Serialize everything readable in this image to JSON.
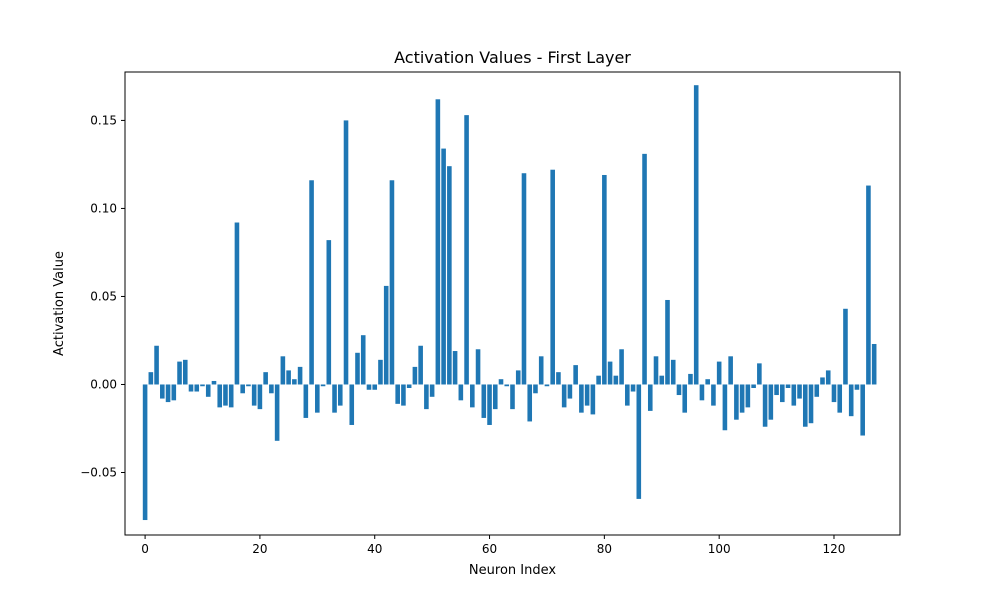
{
  "chart_data": {
    "type": "bar",
    "title": "Activation Values - First Layer",
    "xlabel": "Neuron Index",
    "ylabel": "Activation Value",
    "xlim": [
      -3.5,
      131.5
    ],
    "ylim": [
      -0.0855,
      0.1775
    ],
    "xticks": [
      0,
      20,
      40,
      60,
      80,
      100,
      120
    ],
    "yticks": [
      -0.05,
      0.0,
      0.05,
      0.1,
      0.15
    ],
    "ytick_labels": [
      "−0.05",
      "0.00",
      "0.05",
      "0.10",
      "0.15"
    ],
    "grid": false,
    "bar_color": "#1f77b4",
    "x": [
      0,
      1,
      2,
      3,
      4,
      5,
      6,
      7,
      8,
      9,
      10,
      11,
      12,
      13,
      14,
      15,
      16,
      17,
      18,
      19,
      20,
      21,
      22,
      23,
      24,
      25,
      26,
      27,
      28,
      29,
      30,
      31,
      32,
      33,
      34,
      35,
      36,
      37,
      38,
      39,
      40,
      41,
      42,
      43,
      44,
      45,
      46,
      47,
      48,
      49,
      50,
      51,
      52,
      53,
      54,
      55,
      56,
      57,
      58,
      59,
      60,
      61,
      62,
      63,
      64,
      65,
      66,
      67,
      68,
      69,
      70,
      71,
      72,
      73,
      74,
      75,
      76,
      77,
      78,
      79,
      80,
      81,
      82,
      83,
      84,
      85,
      86,
      87,
      88,
      89,
      90,
      91,
      92,
      93,
      94,
      95,
      96,
      97,
      98,
      99,
      100,
      101,
      102,
      103,
      104,
      105,
      106,
      107,
      108,
      109,
      110,
      111,
      112,
      113,
      114,
      115,
      116,
      117,
      118,
      119,
      120,
      121,
      122,
      123,
      124,
      125,
      126,
      127
    ],
    "values": [
      -0.077,
      0.007,
      0.022,
      -0.008,
      -0.01,
      -0.009,
      0.013,
      0.014,
      -0.004,
      -0.004,
      -0.001,
      -0.007,
      0.002,
      -0.013,
      -0.012,
      -0.013,
      0.092,
      -0.005,
      -0.001,
      -0.012,
      -0.014,
      0.007,
      -0.005,
      -0.032,
      0.016,
      0.008,
      0.003,
      0.01,
      -0.019,
      0.116,
      -0.016,
      -0.001,
      0.082,
      -0.016,
      -0.012,
      0.15,
      -0.023,
      0.018,
      0.028,
      -0.003,
      -0.003,
      0.014,
      0.056,
      0.116,
      -0.011,
      -0.012,
      -0.002,
      0.01,
      0.022,
      -0.014,
      -0.007,
      0.162,
      0.134,
      0.124,
      0.019,
      -0.009,
      0.153,
      -0.013,
      0.02,
      -0.019,
      -0.023,
      -0.014,
      0.003,
      -0.001,
      -0.014,
      0.008,
      0.12,
      -0.021,
      -0.005,
      0.016,
      -0.001,
      0.122,
      0.007,
      -0.013,
      -0.008,
      0.011,
      -0.016,
      -0.012,
      -0.017,
      0.005,
      0.119,
      0.013,
      0.005,
      0.02,
      -0.012,
      -0.004,
      -0.065,
      0.131,
      -0.015,
      0.016,
      0.005,
      0.048,
      0.014,
      -0.006,
      -0.016,
      0.006,
      0.17,
      -0.009,
      0.003,
      -0.012,
      0.013,
      -0.026,
      0.016,
      -0.02,
      -0.016,
      -0.013,
      -0.002,
      0.012,
      -0.024,
      -0.02,
      -0.006,
      -0.01,
      -0.002,
      -0.012,
      -0.008,
      -0.024,
      -0.022,
      -0.007,
      0.004,
      0.008,
      -0.01,
      -0.016,
      0.043,
      -0.018,
      -0.003,
      -0.029,
      0.113,
      0.023
    ]
  }
}
